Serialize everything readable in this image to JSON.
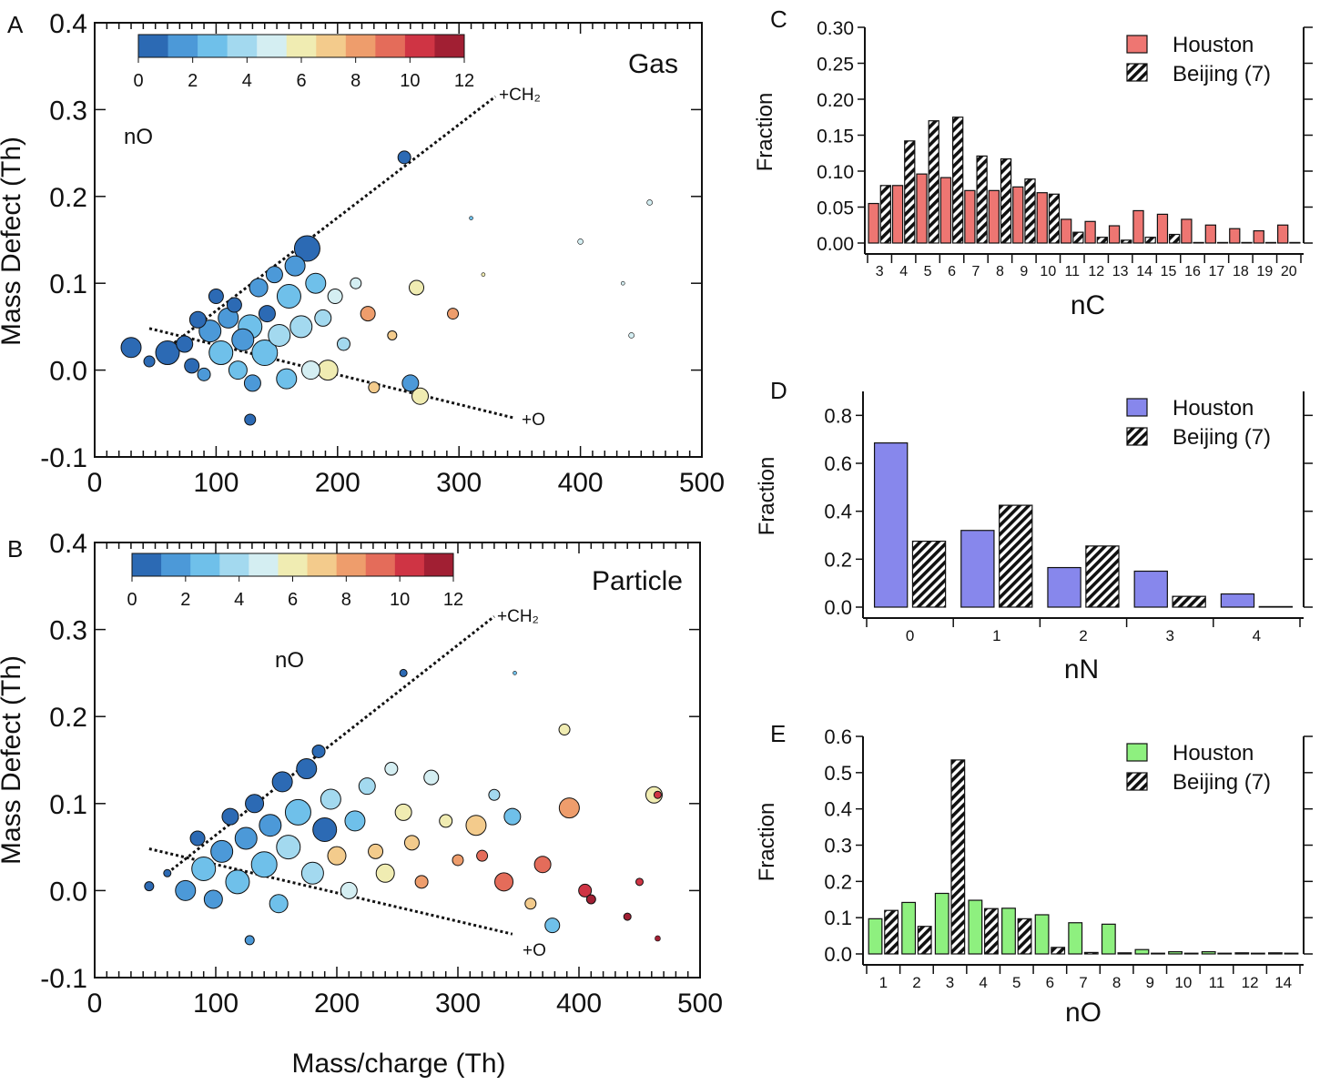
{
  "chart_data": [
    {
      "panel": "A",
      "type": "scatter",
      "title": "Gas",
      "xlabel": "",
      "ylabel": "Mass Defect (Th)",
      "xlim": [
        0,
        500
      ],
      "ylim": [
        -0.1,
        0.4
      ],
      "xticks": [
        "0",
        "100",
        "200",
        "300",
        "400",
        "500"
      ],
      "yticks": [
        "-0.1",
        "0.0",
        "0.1",
        "0.2",
        "0.3",
        "0.4"
      ],
      "colorbar": {
        "label": "nO",
        "ticks": [
          "0",
          "2",
          "4",
          "6",
          "8",
          "10",
          "12"
        ],
        "colors": [
          "#2c6ab4",
          "#4c99d8",
          "#6fc0ea",
          "#a3d9ef",
          "#d4eef2",
          "#f0ecb2",
          "#f3cb8c",
          "#ee9d6c",
          "#e46c5a",
          "#cf3444",
          "#a11f33"
        ]
      },
      "lines": [
        {
          "label": "+CH₂",
          "points": [
            [
              55,
              0.02
            ],
            [
              330,
              0.315
            ]
          ]
        },
        {
          "label": "+O",
          "points": [
            [
              45,
              0.048
            ],
            [
              345,
              -0.055
            ]
          ]
        }
      ],
      "points": [
        {
          "mz": 30,
          "md": 0.026,
          "nO": 0,
          "r": 11
        },
        {
          "mz": 45,
          "md": 0.01,
          "nO": 0,
          "r": 6
        },
        {
          "mz": 60,
          "md": 0.02,
          "nO": 0,
          "r": 13
        },
        {
          "mz": 74,
          "md": 0.03,
          "nO": 1,
          "r": 9
        },
        {
          "mz": 80,
          "md": 0.005,
          "nO": 1,
          "r": 8
        },
        {
          "mz": 85,
          "md": 0.058,
          "nO": 1,
          "r": 9
        },
        {
          "mz": 90,
          "md": -0.005,
          "nO": 2,
          "r": 7
        },
        {
          "mz": 95,
          "md": 0.045,
          "nO": 2,
          "r": 12
        },
        {
          "mz": 100,
          "md": 0.085,
          "nO": 1,
          "r": 8
        },
        {
          "mz": 104,
          "md": 0.02,
          "nO": 3,
          "r": 13
        },
        {
          "mz": 110,
          "md": 0.06,
          "nO": 2,
          "r": 11
        },
        {
          "mz": 115,
          "md": 0.075,
          "nO": 0,
          "r": 8
        },
        {
          "mz": 118,
          "md": 0.0,
          "nO": 3,
          "r": 10
        },
        {
          "mz": 122,
          "md": 0.035,
          "nO": 2,
          "r": 12
        },
        {
          "mz": 128,
          "md": 0.05,
          "nO": 3,
          "r": 13
        },
        {
          "mz": 130,
          "md": -0.015,
          "nO": 2,
          "r": 9
        },
        {
          "mz": 128,
          "md": -0.057,
          "nO": 1,
          "r": 6
        },
        {
          "mz": 135,
          "md": 0.095,
          "nO": 2,
          "r": 10
        },
        {
          "mz": 140,
          "md": 0.02,
          "nO": 3,
          "r": 14
        },
        {
          "mz": 142,
          "md": 0.065,
          "nO": 1,
          "r": 9
        },
        {
          "mz": 148,
          "md": 0.11,
          "nO": 2,
          "r": 9
        },
        {
          "mz": 152,
          "md": 0.04,
          "nO": 4,
          "r": 12
        },
        {
          "mz": 158,
          "md": -0.01,
          "nO": 3,
          "r": 11
        },
        {
          "mz": 160,
          "md": 0.085,
          "nO": 3,
          "r": 13
        },
        {
          "mz": 165,
          "md": 0.12,
          "nO": 2,
          "r": 11
        },
        {
          "mz": 170,
          "md": 0.05,
          "nO": 4,
          "r": 12
        },
        {
          "mz": 175,
          "md": 0.14,
          "nO": 1,
          "r": 14
        },
        {
          "mz": 178,
          "md": 0.0,
          "nO": 5,
          "r": 10
        },
        {
          "mz": 182,
          "md": 0.1,
          "nO": 3,
          "r": 11
        },
        {
          "mz": 188,
          "md": 0.06,
          "nO": 4,
          "r": 9
        },
        {
          "mz": 192,
          "md": 0.0,
          "nO": 6,
          "r": 11
        },
        {
          "mz": 198,
          "md": 0.085,
          "nO": 5,
          "r": 8
        },
        {
          "mz": 205,
          "md": 0.03,
          "nO": 4,
          "r": 7
        },
        {
          "mz": 215,
          "md": 0.1,
          "nO": 5,
          "r": 6
        },
        {
          "mz": 225,
          "md": 0.065,
          "nO": 8,
          "r": 8
        },
        {
          "mz": 230,
          "md": -0.02,
          "nO": 7,
          "r": 6
        },
        {
          "mz": 245,
          "md": 0.04,
          "nO": 7,
          "r": 5
        },
        {
          "mz": 255,
          "md": 0.245,
          "nO": 1,
          "r": 7
        },
        {
          "mz": 265,
          "md": 0.095,
          "nO": 6,
          "r": 8
        },
        {
          "mz": 268,
          "md": -0.03,
          "nO": 6,
          "r": 9
        },
        {
          "mz": 260,
          "md": -0.015,
          "nO": 2,
          "r": 9
        },
        {
          "mz": 295,
          "md": 0.065,
          "nO": 8,
          "r": 6
        },
        {
          "mz": 310,
          "md": 0.175,
          "nO": 3,
          "r": 2
        },
        {
          "mz": 320,
          "md": 0.11,
          "nO": 6,
          "r": 2
        },
        {
          "mz": 400,
          "md": 0.148,
          "nO": 5,
          "r": 3
        },
        {
          "mz": 442,
          "md": 0.04,
          "nO": 5,
          "r": 3
        },
        {
          "mz": 457,
          "md": 0.193,
          "nO": 5,
          "r": 3
        },
        {
          "mz": 435,
          "md": 0.1,
          "nO": 5,
          "r": 2
        }
      ]
    },
    {
      "panel": "B",
      "type": "scatter",
      "title": "Particle",
      "xlabel": "Mass/charge (Th)",
      "ylabel": "Mass Defect (Th)",
      "xlim": [
        0,
        500
      ],
      "ylim": [
        -0.1,
        0.4
      ],
      "xticks": [
        "0",
        "100",
        "200",
        "300",
        "400",
        "500"
      ],
      "yticks": [
        "-0.1",
        "0.0",
        "0.1",
        "0.2",
        "0.3",
        "0.4"
      ],
      "colorbar": {
        "label": "nO",
        "ticks": [
          "0",
          "2",
          "4",
          "6",
          "8",
          "10",
          "12"
        ],
        "colors": [
          "#2c6ab4",
          "#4c99d8",
          "#6fc0ea",
          "#a3d9ef",
          "#d4eef2",
          "#f0ecb2",
          "#f3cb8c",
          "#ee9d6c",
          "#e46c5a",
          "#cf3444",
          "#a11f33"
        ]
      },
      "lines": [
        {
          "label": "+CH₂",
          "points": [
            [
              60,
              0.02
            ],
            [
              330,
              0.315
            ]
          ]
        },
        {
          "label": "+O",
          "points": [
            [
              45,
              0.048
            ],
            [
              345,
              -0.05
            ]
          ]
        }
      ],
      "points": [
        {
          "mz": 45,
          "md": 0.005,
          "nO": 0,
          "r": 5
        },
        {
          "mz": 60,
          "md": 0.02,
          "nO": 0,
          "r": 4
        },
        {
          "mz": 75,
          "md": 0.0,
          "nO": 2,
          "r": 11
        },
        {
          "mz": 85,
          "md": 0.06,
          "nO": 1,
          "r": 8
        },
        {
          "mz": 90,
          "md": 0.025,
          "nO": 3,
          "r": 13
        },
        {
          "mz": 98,
          "md": -0.01,
          "nO": 2,
          "r": 10
        },
        {
          "mz": 105,
          "md": 0.045,
          "nO": 2,
          "r": 12
        },
        {
          "mz": 112,
          "md": 0.085,
          "nO": 1,
          "r": 9
        },
        {
          "mz": 118,
          "md": 0.01,
          "nO": 3,
          "r": 13
        },
        {
          "mz": 125,
          "md": 0.06,
          "nO": 2,
          "r": 12
        },
        {
          "mz": 128,
          "md": -0.057,
          "nO": 2,
          "r": 5
        },
        {
          "mz": 132,
          "md": 0.1,
          "nO": 1,
          "r": 10
        },
        {
          "mz": 140,
          "md": 0.03,
          "nO": 3,
          "r": 14
        },
        {
          "mz": 145,
          "md": 0.075,
          "nO": 2,
          "r": 12
        },
        {
          "mz": 152,
          "md": -0.015,
          "nO": 3,
          "r": 10
        },
        {
          "mz": 155,
          "md": 0.125,
          "nO": 1,
          "r": 11
        },
        {
          "mz": 160,
          "md": 0.05,
          "nO": 4,
          "r": 13
        },
        {
          "mz": 168,
          "md": 0.09,
          "nO": 3,
          "r": 14
        },
        {
          "mz": 175,
          "md": 0.14,
          "nO": 1,
          "r": 11
        },
        {
          "mz": 180,
          "md": 0.02,
          "nO": 4,
          "r": 12
        },
        {
          "mz": 185,
          "md": 0.16,
          "nO": 0,
          "r": 7
        },
        {
          "mz": 190,
          "md": 0.07,
          "nO": 1,
          "r": 13
        },
        {
          "mz": 195,
          "md": 0.105,
          "nO": 4,
          "r": 11
        },
        {
          "mz": 200,
          "md": 0.04,
          "nO": 7,
          "r": 10
        },
        {
          "mz": 210,
          "md": 0.0,
          "nO": 5,
          "r": 9
        },
        {
          "mz": 215,
          "md": 0.08,
          "nO": 3,
          "r": 11
        },
        {
          "mz": 225,
          "md": 0.12,
          "nO": 4,
          "r": 9
        },
        {
          "mz": 232,
          "md": 0.045,
          "nO": 7,
          "r": 8
        },
        {
          "mz": 240,
          "md": 0.02,
          "nO": 6,
          "r": 10
        },
        {
          "mz": 245,
          "md": 0.14,
          "nO": 5,
          "r": 7
        },
        {
          "mz": 255,
          "md": 0.09,
          "nO": 6,
          "r": 9
        },
        {
          "mz": 255,
          "md": 0.25,
          "nO": 1,
          "r": 4
        },
        {
          "mz": 262,
          "md": 0.055,
          "nO": 7,
          "r": 8
        },
        {
          "mz": 270,
          "md": 0.01,
          "nO": 8,
          "r": 7
        },
        {
          "mz": 278,
          "md": 0.13,
          "nO": 5,
          "r": 8
        },
        {
          "mz": 290,
          "md": 0.08,
          "nO": 6,
          "r": 7
        },
        {
          "mz": 300,
          "md": 0.035,
          "nO": 8,
          "r": 6
        },
        {
          "mz": 315,
          "md": 0.075,
          "nO": 7,
          "r": 11
        },
        {
          "mz": 320,
          "md": 0.04,
          "nO": 9,
          "r": 6
        },
        {
          "mz": 330,
          "md": 0.11,
          "nO": 4,
          "r": 6
        },
        {
          "mz": 338,
          "md": 0.01,
          "nO": 9,
          "r": 10
        },
        {
          "mz": 345,
          "md": 0.085,
          "nO": 3,
          "r": 9
        },
        {
          "mz": 360,
          "md": -0.015,
          "nO": 7,
          "r": 6
        },
        {
          "mz": 370,
          "md": 0.03,
          "nO": 9,
          "r": 9
        },
        {
          "mz": 378,
          "md": -0.04,
          "nO": 3,
          "r": 8
        },
        {
          "mz": 388,
          "md": 0.185,
          "nO": 6,
          "r": 6
        },
        {
          "mz": 392,
          "md": 0.095,
          "nO": 8,
          "r": 11
        },
        {
          "mz": 405,
          "md": 0.0,
          "nO": 10,
          "r": 7
        },
        {
          "mz": 410,
          "md": -0.01,
          "nO": 11,
          "r": 5
        },
        {
          "mz": 440,
          "md": -0.03,
          "nO": 11,
          "r": 4
        },
        {
          "mz": 450,
          "md": 0.01,
          "nO": 10,
          "r": 4
        },
        {
          "mz": 462,
          "md": 0.11,
          "nO": 6,
          "r": 9
        },
        {
          "mz": 465,
          "md": 0.11,
          "nO": 10,
          "r": 4
        },
        {
          "mz": 465,
          "md": -0.055,
          "nO": 11,
          "r": 3
        },
        {
          "mz": 347,
          "md": 0.25,
          "nO": 3,
          "r": 2
        }
      ]
    },
    {
      "panel": "C",
      "type": "bar",
      "xlabel": "nC",
      "ylabel": "Fraction",
      "ylim": [
        0,
        0.3
      ],
      "yticks": [
        "0.00",
        "0.05",
        "0.10",
        "0.15",
        "0.20",
        "0.25",
        "0.30"
      ],
      "categories": [
        "3",
        "4",
        "5",
        "6",
        "7",
        "8",
        "9",
        "10",
        "11",
        "12",
        "13",
        "14",
        "15",
        "16",
        "17",
        "18",
        "19",
        "20"
      ],
      "series": [
        {
          "name": "Houston",
          "color": "#ee7672",
          "values": [
            0.055,
            0.08,
            0.096,
            0.091,
            0.073,
            0.073,
            0.078,
            0.07,
            0.033,
            0.03,
            0.024,
            0.045,
            0.04,
            0.033,
            0.025,
            0.02,
            0.017,
            0.025
          ]
        },
        {
          "name": "Beijing (7)",
          "hatched": true,
          "values": [
            0.08,
            0.142,
            0.17,
            0.175,
            0.121,
            0.117,
            0.089,
            0.068,
            0.015,
            0.008,
            0.004,
            0.008,
            0.012,
            0,
            0,
            0,
            0,
            0
          ]
        }
      ]
    },
    {
      "panel": "D",
      "type": "bar",
      "xlabel": "nN",
      "ylabel": "Fraction",
      "ylim": [
        0,
        0.9
      ],
      "yticks": [
        "0.0",
        "0.2",
        "0.4",
        "0.6",
        "0.8"
      ],
      "categories": [
        "0",
        "1",
        "2",
        "3",
        "4"
      ],
      "series": [
        {
          "name": "Houston",
          "color": "#8787ec",
          "values": [
            0.685,
            0.32,
            0.165,
            0.15,
            0.055
          ]
        },
        {
          "name": "Beijing (7)",
          "hatched": true,
          "values": [
            0.275,
            0.425,
            0.255,
            0.045,
            0.0
          ]
        }
      ]
    },
    {
      "panel": "E",
      "type": "bar",
      "xlabel": "nO",
      "ylabel": "Fraction",
      "ylim": [
        0,
        0.6
      ],
      "yticks": [
        "0.0",
        "0.1",
        "0.2",
        "0.3",
        "0.4",
        "0.5",
        "0.6"
      ],
      "categories": [
        "1",
        "2",
        "3",
        "4",
        "5",
        "6",
        "7",
        "8",
        "9",
        "10",
        "11",
        "12",
        "14"
      ],
      "series": [
        {
          "name": "Houston",
          "color": "#8ef07f",
          "values": [
            0.097,
            0.142,
            0.167,
            0.148,
            0.126,
            0.108,
            0.086,
            0.082,
            0.012,
            0.006,
            0.006,
            0.003,
            0.003
          ]
        },
        {
          "name": "Beijing (7)",
          "hatched": true,
          "values": [
            0.12,
            0.076,
            0.535,
            0.125,
            0.097,
            0.018,
            0.004,
            0.003,
            0.002,
            0.002,
            0.002,
            0.002,
            0.002
          ]
        }
      ]
    }
  ]
}
